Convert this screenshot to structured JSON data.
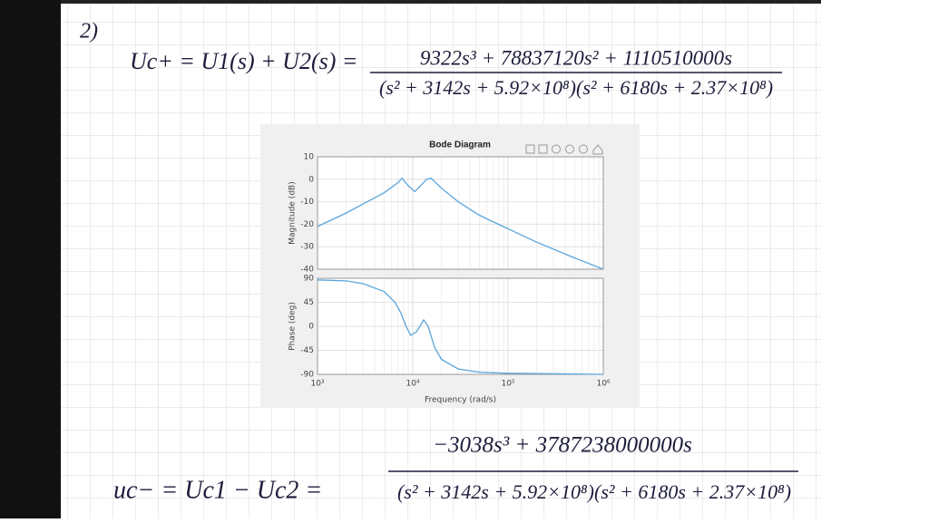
{
  "notes": {
    "label": "2)",
    "equations": [
      {
        "lhs": "Uc+ = U1(s) + U2(s) =",
        "numerator": "9322s³ + 78837120s² + 1110510000s",
        "denominator": "(s² + 3142s + 5.92×10⁸)(s² + 6180s + 2.37×10⁸)"
      },
      {
        "lhs": "uc− = Uc1 − Uc2 =",
        "numerator": "−3038s³ + 3787238000000s",
        "denominator": "(s² + 3142s + 5.92×10⁸)(s² + 6180s + 2.37×10⁸)"
      }
    ]
  },
  "chart_data": [
    {
      "type": "line",
      "title": "Bode Diagram",
      "ylabel": "Magnitude (dB)",
      "xscale": "log",
      "grid": true,
      "color": "#5aa5dc",
      "x": [
        1000,
        2000,
        3000,
        5000,
        7000,
        7700,
        9000,
        10500,
        12000,
        14000,
        15500,
        17000,
        20000,
        30000,
        50000,
        100000,
        200000,
        500000,
        1000000
      ],
      "values": [
        -21,
        -15,
        -11,
        -6,
        -1.5,
        0.5,
        -3,
        -5.5,
        -3,
        0,
        0.5,
        -1,
        -4,
        -10,
        -16,
        -22,
        -28,
        -35,
        -40
      ],
      "xlim": [
        1000,
        1000000
      ],
      "xticks": [
        1000,
        10000,
        100000,
        1000000
      ],
      "ylim": [
        -40,
        10
      ],
      "yticks": [
        10,
        0,
        -10,
        -20,
        -30,
        -40
      ]
    },
    {
      "type": "line",
      "ylabel": "Phase (deg)",
      "xlabel": "Frequency (rad/s)",
      "xscale": "log",
      "grid": true,
      "color": "#5aa5dc",
      "x": [
        1000,
        2000,
        3000,
        5000,
        6500,
        7500,
        8500,
        9500,
        11000,
        13000,
        14500,
        17000,
        20000,
        30000,
        50000,
        100000,
        1000000
      ],
      "values": [
        87,
        85,
        80,
        65,
        45,
        25,
        0,
        -17,
        -10,
        12,
        0,
        -40,
        -62,
        -80,
        -86,
        -88,
        -90
      ],
      "xlim": [
        1000,
        1000000
      ],
      "xticks": [
        {
          "value": 1000,
          "label": "10³"
        },
        {
          "value": 10000,
          "label": "10⁴"
        },
        {
          "value": 100000,
          "label": "10⁵"
        },
        {
          "value": 1000000,
          "label": "10⁶"
        }
      ],
      "ylim": [
        -90,
        90
      ],
      "yticks": [
        90,
        45,
        0,
        -45,
        -90
      ]
    }
  ]
}
